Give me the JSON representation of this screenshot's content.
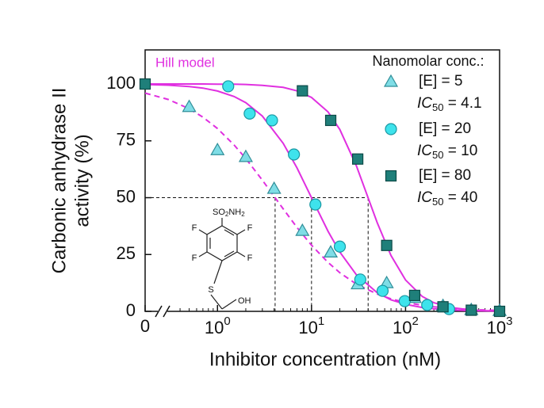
{
  "chart_data": {
    "type": "scatter",
    "annotation": "Hill model",
    "legend_title": "Nanomolar conc.:",
    "xlabel": "Inhibitor concentration (nM)",
    "ylabel": [
      "Carbonic anhydrase II",
      "activity (%)"
    ],
    "xscale": "log",
    "axis_break": true,
    "xlim": [
      0.17,
      1000
    ],
    "ylim": [
      0,
      115
    ],
    "xticks": [
      0,
      {
        "value": 1,
        "label": "10",
        "exponent": "0"
      },
      {
        "value": 10,
        "label": "10",
        "exponent": "1"
      },
      {
        "value": 100,
        "label": "10",
        "exponent": "2"
      },
      {
        "value": 1000,
        "label": "10",
        "exponent": "3"
      }
    ],
    "yticks": [
      0,
      25,
      50,
      75,
      100
    ],
    "series": [
      {
        "name": "[E] = 5",
        "marker": "triangle",
        "color": "#7fdde6",
        "edge": "#2f8e98",
        "note": [
          "IC",
          "50",
          " = 4.1"
        ],
        "x": [
          0.5,
          1,
          2,
          4,
          8,
          16,
          31,
          63,
          125,
          250,
          500,
          1000
        ],
        "values": [
          90,
          71,
          68,
          54,
          35.5,
          26,
          12,
          12.5,
          6,
          2.5,
          0.7,
          0.3
        ]
      },
      {
        "name": "[E] = 20",
        "marker": "circle",
        "color": "#3ee3ec",
        "edge": "#1a98a3",
        "note": [
          "IC",
          "50",
          " = 10"
        ],
        "x": [
          1.3,
          2.2,
          3.8,
          6.5,
          11,
          20,
          33,
          57,
          98,
          170,
          290
        ],
        "values": [
          99,
          87,
          84,
          69,
          47,
          28.5,
          14,
          9,
          4.5,
          2.8,
          1
        ]
      },
      {
        "name": "[E] = 80",
        "marker": "square",
        "color": "#1f7f7a",
        "edge": "#0c4a47",
        "note": [
          "IC",
          "50",
          " = 40"
        ],
        "x": [
          0,
          8,
          16,
          31,
          63,
          125,
          250,
          500,
          1000
        ],
        "values": [
          100,
          97,
          84,
          67,
          29,
          7,
          2,
          0.5,
          0
        ]
      }
    ],
    "fits": [
      {
        "color": "#e030e0",
        "dashed": true,
        "x": [
          0.17,
          0.3,
          0.5,
          0.7,
          1,
          1.5,
          2,
          3,
          5,
          7,
          10,
          15,
          20,
          30,
          50,
          70,
          100,
          150,
          200,
          300,
          500,
          700,
          1000
        ],
        "values": [
          96.0,
          93.2,
          89.1,
          85.4,
          80.4,
          73.2,
          67.2,
          57.7,
          45.1,
          36.9,
          29.1,
          21.5,
          17.0,
          12.0,
          7.6,
          5.5,
          3.9,
          2.7,
          2.0,
          1.3,
          0.8,
          0.6,
          0.4
        ]
      },
      {
        "color": "#e030e0",
        "dashed": false,
        "x": [
          0.17,
          0.3,
          0.5,
          0.7,
          1,
          1.5,
          2,
          3,
          5,
          7,
          10,
          15,
          20,
          30,
          50,
          70,
          100,
          150,
          200,
          300,
          500,
          700,
          1000
        ],
        "values": [
          99.8,
          99.5,
          98.9,
          98.2,
          96.9,
          94.5,
          91.8,
          85.9,
          73.9,
          63.1,
          50,
          35.2,
          26.1,
          16.1,
          8.2,
          5.1,
          3.1,
          1.7,
          1.1,
          0.6,
          0.3,
          0.2,
          0.1
        ]
      },
      {
        "color": "#e030e0",
        "dashed": false,
        "x": [
          0.17,
          0.3,
          0.5,
          0.7,
          1,
          1.5,
          2,
          3,
          5,
          7,
          10,
          15,
          20,
          30,
          50,
          70,
          100,
          150,
          200,
          300,
          500,
          700,
          1000
        ],
        "values": [
          100.0,
          100.0,
          100.0,
          100.0,
          99.9,
          99.9,
          99.8,
          99.4,
          98.5,
          97.0,
          94.1,
          87.7,
          80.0,
          64.0,
          39.0,
          24.6,
          13.8,
          6.6,
          3.8,
          1.7,
          0.6,
          0.3,
          0.2
        ]
      }
    ],
    "reference": {
      "y": 50,
      "x": [
        4.1,
        10,
        40
      ]
    },
    "structure": {
      "sulfonamide": [
        "SO",
        "2",
        "NH",
        "2"
      ],
      "fluorine": "F",
      "sulfur": "S",
      "hydroxyl": "OH"
    }
  }
}
